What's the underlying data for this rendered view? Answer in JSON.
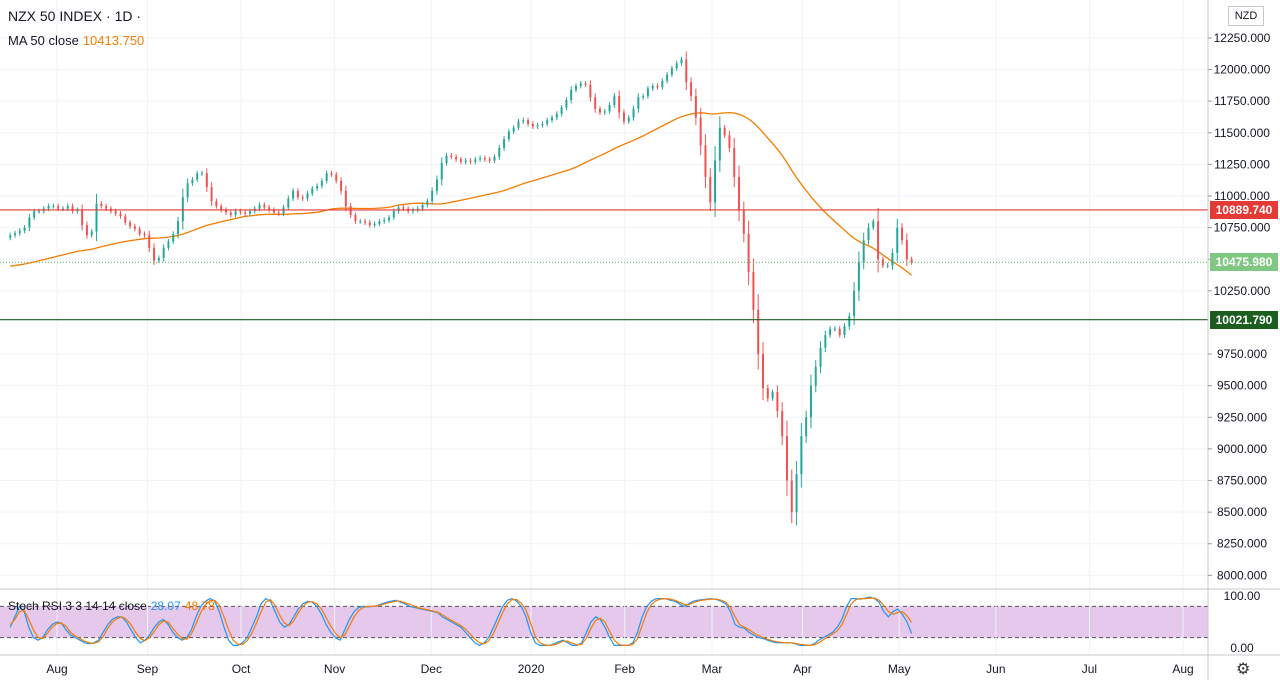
{
  "header": {
    "title": "NZX 50 INDEX · 1D ·",
    "ma_label": "MA 50 close",
    "ma_value": "10413.750",
    "currency": "NZD"
  },
  "price_tags": {
    "resistance": "10889.740",
    "last": "10475.980",
    "support": "10021.790"
  },
  "stoch": {
    "label": "Stoch RSI 3 3 14 14 close",
    "k_value": "28.07",
    "d_value": "48.78"
  },
  "colors": {
    "up": "#26a69a",
    "down": "#ef5350",
    "ma": "#f57c00",
    "resistance": "#e53935",
    "support": "#1b5e20",
    "last": "#4caf50",
    "k": "#2196f3",
    "d": "#f57c00",
    "stoch_band": "#e1bee7"
  },
  "chart_data": [
    {
      "type": "candlestick",
      "title": "NZX 50 INDEX · 1D ·",
      "ylim": [
        7900,
        12550
      ],
      "y_ticks": [
        12250,
        12000,
        11750,
        11500,
        11250,
        11000,
        10750,
        10500,
        10250,
        9750,
        9500,
        9250,
        9000,
        8750,
        8500,
        8250,
        8000
      ],
      "y_tick_labels": [
        "12250.000",
        "12000.000",
        "11750.000",
        "11500.000",
        "11250.000",
        "11000.000",
        "10750.000",
        "10500.000",
        "10250.000",
        "9750.000",
        "9500.000",
        "9250.000",
        "9000.000",
        "8750.000",
        "8500.000",
        "8250.000",
        "8000.000"
      ],
      "x_labels": [
        "Aug",
        "Sep",
        "Oct",
        "Nov",
        "Dec",
        "2020",
        "Feb",
        "Mar",
        "Apr",
        "May",
        "Jun",
        "Jul",
        "Aug"
      ],
      "x_label_days": [
        0,
        29,
        59,
        89,
        120,
        152,
        182,
        210,
        239,
        270,
        301,
        331,
        361
      ],
      "first_candle_day": -15,
      "close": [
        10690,
        10705,
        10725,
        10750,
        10830,
        10880,
        10880,
        10900,
        10920,
        10920,
        10900,
        10900,
        10920,
        10880,
        10890,
        10770,
        10690,
        10720,
        10940,
        10920,
        10900,
        10880,
        10860,
        10840,
        10790,
        10760,
        10740,
        10700,
        10690,
        10590,
        10490,
        10510,
        10590,
        10640,
        10700,
        10800,
        10990,
        11100,
        11130,
        11180,
        11180,
        11070,
        10960,
        10920,
        10890,
        10870,
        10850,
        10880,
        10870,
        10860,
        10880,
        10900,
        10930,
        10910,
        10890,
        10870,
        10860,
        10910,
        10980,
        11040,
        10990,
        10980,
        11020,
        11060,
        11080,
        11120,
        11180,
        11170,
        11120,
        11040,
        10920,
        10850,
        10800,
        10800,
        10790,
        10770,
        10780,
        10800,
        10810,
        10830,
        10880,
        10910,
        10900,
        10880,
        10890,
        10900,
        10930,
        10960,
        11040,
        11130,
        11260,
        11320,
        11310,
        11290,
        11270,
        11280,
        11270,
        11290,
        11300,
        11290,
        11280,
        11310,
        11380,
        11450,
        11510,
        11540,
        11590,
        11600,
        11570,
        11550,
        11560,
        11570,
        11600,
        11620,
        11650,
        11700,
        11760,
        11840,
        11870,
        11890,
        11880,
        11780,
        11690,
        11660,
        11670,
        11720,
        11790,
        11660,
        11590,
        11620,
        11690,
        11780,
        11790,
        11850,
        11870,
        11860,
        11910,
        11960,
        12010,
        12050,
        12080,
        11900,
        11790,
        11620,
        11400,
        11150,
        10950,
        11280,
        11540,
        11480,
        11380,
        11150,
        10890,
        10700,
        10400,
        10100,
        9750,
        9480,
        9400,
        9450,
        9300,
        9100,
        8750,
        8500,
        8800,
        9100,
        9250,
        9500,
        9650,
        9800,
        9900,
        9950,
        9950,
        9900,
        9970,
        10050,
        10250,
        10480,
        10650,
        10750,
        10800,
        10500,
        10450,
        10450,
        10550,
        10750,
        10650,
        10500,
        10476
      ]
    },
    {
      "type": "line",
      "title": "Stoch RSI 3 3 14 14 close",
      "ylim": [
        0,
        100
      ],
      "y_ticks": [
        100,
        0
      ],
      "y_tick_labels": [
        "100.00",
        "0.00"
      ],
      "levels": [
        80,
        20
      ],
      "series": [
        {
          "name": "K",
          "values": [
            40,
            60,
            80,
            70,
            40,
            20,
            15,
            20,
            35,
            45,
            50,
            48,
            35,
            25,
            20,
            15,
            10,
            8,
            10,
            15,
            30,
            45,
            55,
            60,
            60,
            50,
            35,
            20,
            10,
            15,
            25,
            40,
            50,
            55,
            45,
            30,
            20,
            15,
            20,
            35,
            60,
            80,
            90,
            95,
            90,
            70,
            40,
            15,
            5,
            5,
            10,
            20,
            40,
            60,
            85,
            95,
            90,
            70,
            50,
            40,
            45,
            60,
            75,
            85,
            90,
            88,
            80,
            65,
            45,
            30,
            20,
            15,
            35,
            55,
            70,
            78,
            80,
            79,
            80,
            82,
            85,
            88,
            90,
            92,
            88,
            85,
            80,
            78,
            76,
            74,
            72,
            70,
            68,
            60,
            55,
            50,
            45,
            40,
            30,
            20,
            10,
            5,
            10,
            20,
            40,
            60,
            80,
            92,
            95,
            90,
            80,
            60,
            30,
            10,
            5,
            5,
            5,
            8,
            12,
            15,
            10,
            5,
            5,
            10,
            30,
            50,
            60,
            55,
            40,
            20,
            5,
            5,
            5,
            5,
            10,
            30,
            60,
            80,
            90,
            95,
            95,
            95,
            92,
            90,
            85,
            80,
            85,
            90,
            92,
            93,
            94,
            95,
            93,
            90,
            85,
            70,
            45,
            40,
            38,
            30,
            25,
            20,
            18,
            15,
            12,
            10,
            10,
            10,
            10,
            8,
            5,
            5,
            5,
            8,
            15,
            20,
            25,
            30,
            40,
            55,
            80,
            95,
            95,
            94,
            96,
            98,
            95,
            88,
            70,
            60,
            70,
            75,
            65,
            50,
            28
          ]
        },
        {
          "name": "D",
          "values": [
            45,
            55,
            70,
            72,
            55,
            35,
            20,
            18,
            28,
            40,
            47,
            48,
            42,
            30,
            23,
            18,
            13,
            10,
            9,
            12,
            22,
            38,
            50,
            57,
            60,
            55,
            45,
            30,
            18,
            14,
            20,
            32,
            45,
            52,
            50,
            38,
            27,
            18,
            17,
            27,
            47,
            68,
            83,
            91,
            92,
            82,
            60,
            35,
            15,
            7,
            7,
            14,
            28,
            48,
            70,
            88,
            93,
            82,
            63,
            48,
            43,
            52,
            68,
            80,
            88,
            89,
            85,
            75,
            58,
            42,
            28,
            20,
            25,
            42,
            60,
            72,
            78,
            80,
            80,
            81,
            83,
            86,
            88,
            90,
            90,
            87,
            84,
            80,
            77,
            75,
            73,
            71,
            69,
            64,
            58,
            53,
            48,
            43,
            36,
            27,
            17,
            10,
            8,
            14,
            28,
            48,
            68,
            85,
            93,
            93,
            86,
            73,
            48,
            22,
            10,
            6,
            5,
            6,
            9,
            13,
            13,
            9,
            6,
            7,
            19,
            38,
            53,
            57,
            50,
            32,
            15,
            7,
            5,
            5,
            7,
            18,
            43,
            68,
            84,
            91,
            94,
            95,
            94,
            92,
            88,
            84,
            83,
            87,
            90,
            92,
            93,
            94,
            94,
            92,
            88,
            78,
            60,
            45,
            40,
            35,
            29,
            24,
            20,
            17,
            14,
            12,
            11,
            10,
            10,
            9,
            7,
            6,
            5,
            6,
            10,
            16,
            22,
            27,
            33,
            45,
            65,
            85,
            93,
            95,
            95,
            96,
            96,
            92,
            82,
            70,
            65,
            68,
            70,
            62,
            49
          ]
        }
      ]
    }
  ]
}
